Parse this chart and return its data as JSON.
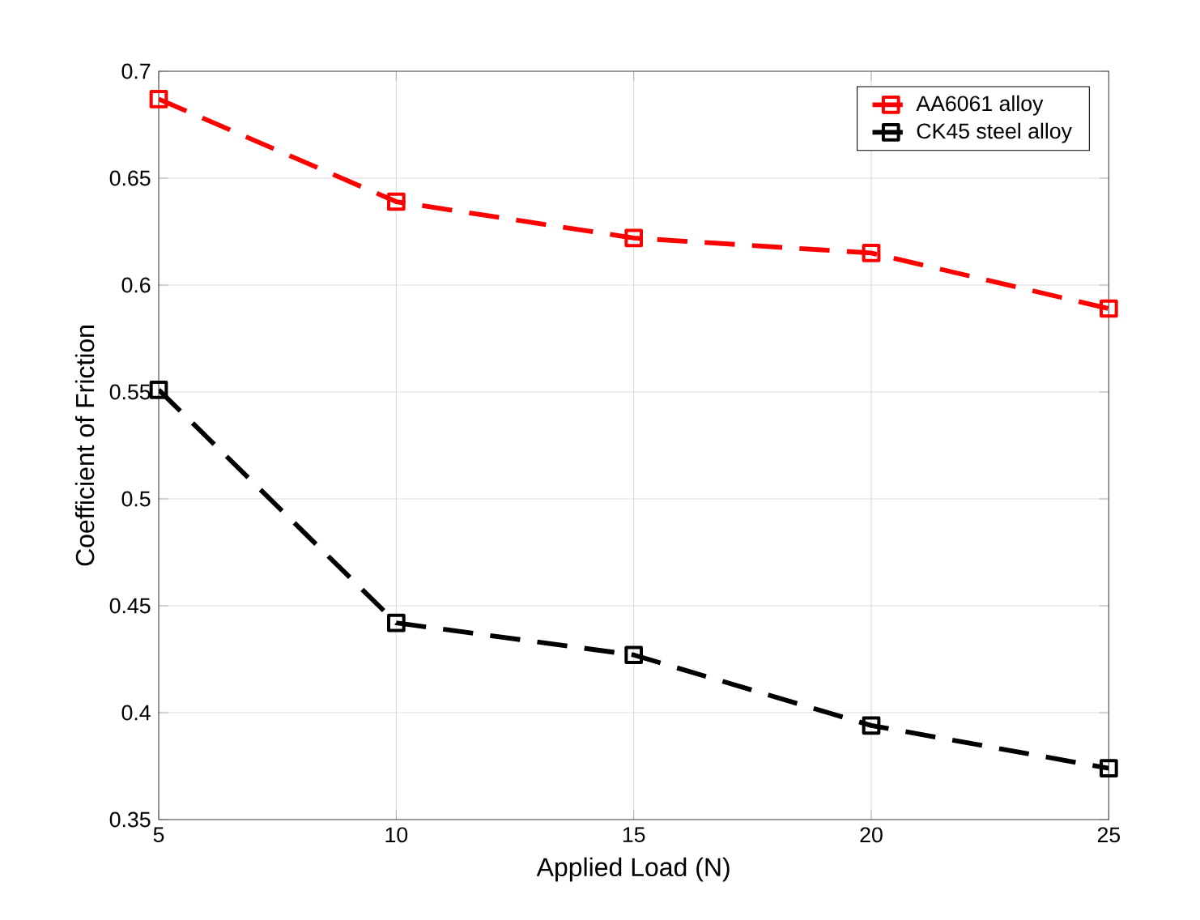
{
  "chart_data": {
    "type": "line",
    "xlabel": "Applied Load (N)",
    "ylabel": "Coefficient of Friction",
    "x": [
      5,
      10,
      15,
      20,
      25
    ],
    "series": [
      {
        "name": "AA6061 alloy",
        "color": "#ff0000",
        "values": [
          0.687,
          0.639,
          0.622,
          0.615,
          0.589
        ]
      },
      {
        "name": "CK45 steel alloy",
        "color": "#000000",
        "values": [
          0.551,
          0.442,
          0.427,
          0.394,
          0.374
        ]
      }
    ],
    "xlim": [
      5,
      25
    ],
    "xticks": [
      5,
      10,
      15,
      20,
      25
    ],
    "ylim": [
      0.35,
      0.7
    ],
    "yticks": [
      0.35,
      0.4,
      0.45,
      0.5,
      0.55,
      0.6,
      0.65,
      0.7
    ],
    "grid": true,
    "legend": "top right",
    "marker": "square",
    "line_style": "dashed"
  }
}
